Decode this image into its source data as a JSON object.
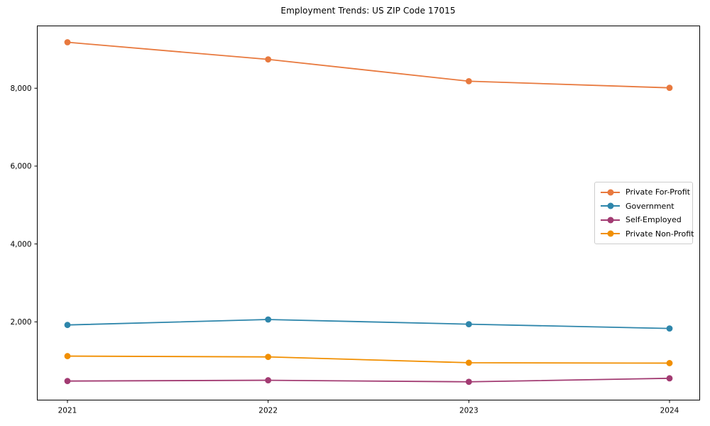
{
  "chart_data": {
    "type": "line",
    "title": "Employment Trends: US ZIP Code 17015",
    "xlabel": "",
    "ylabel": "",
    "x": [
      "2021",
      "2022",
      "2023",
      "2024"
    ],
    "series": [
      {
        "name": "Private For-Profit",
        "color": "#E8793E",
        "values": [
          9180,
          8740,
          8180,
          8010
        ]
      },
      {
        "name": "Government",
        "color": "#2E86AB",
        "values": [
          1920,
          2060,
          1940,
          1830
        ]
      },
      {
        "name": "Self-Employed",
        "color": "#A23B72",
        "values": [
          480,
          500,
          460,
          550
        ]
      },
      {
        "name": "Private Non-Profit",
        "color": "#F18F01",
        "values": [
          1120,
          1100,
          950,
          940
        ]
      }
    ],
    "yticks": [
      {
        "value": 2000,
        "label": "2,000"
      },
      {
        "value": 4000,
        "label": "4,000"
      },
      {
        "value": 6000,
        "label": "6,000"
      },
      {
        "value": 8000,
        "label": "8,000"
      }
    ],
    "ylim": [
      0,
      9600
    ],
    "grid": false,
    "legend_position": "right-center",
    "marker": "circle",
    "spine_color": "#000000"
  }
}
